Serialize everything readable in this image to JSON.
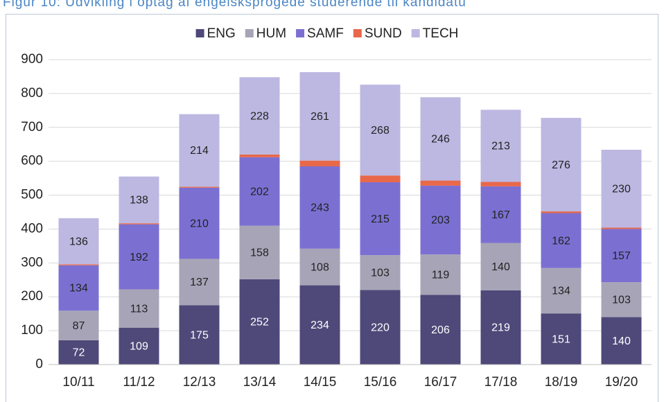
{
  "chart_data": {
    "type": "stacked_bar",
    "title": "Figur 10: Udvikling i optag af engelsksprogede studerende til kandidatu",
    "categories": [
      "10/11",
      "11/12",
      "12/13",
      "13/14",
      "14/15",
      "15/16",
      "16/17",
      "17/18",
      "18/19",
      "19/20"
    ],
    "series": [
      {
        "name": "ENG",
        "color": "#4e4979",
        "labels": true,
        "label_color": "#ffffff",
        "values": [
          72,
          109,
          175,
          252,
          234,
          220,
          206,
          219,
          151,
          140
        ]
      },
      {
        "name": "HUM",
        "color": "#a7a4b7",
        "labels": true,
        "label_color": "#222222",
        "values": [
          87,
          113,
          137,
          158,
          108,
          103,
          119,
          140,
          134,
          103
        ]
      },
      {
        "name": "SAMF",
        "color": "#7b70d2",
        "labels": true,
        "label_color": "#222222",
        "values": [
          134,
          192,
          210,
          202,
          243,
          215,
          203,
          167,
          162,
          157
        ]
      },
      {
        "name": "SUND",
        "color": "#e8684a",
        "labels": false,
        "values": [
          3,
          3,
          3,
          8,
          17,
          20,
          15,
          13,
          5,
          4
        ]
      },
      {
        "name": "TECH",
        "color": "#bcb8e2",
        "labels": true,
        "label_color": "#222222",
        "values": [
          136,
          138,
          214,
          228,
          261,
          268,
          246,
          213,
          276,
          230
        ]
      }
    ],
    "ylim": [
      0,
      900
    ],
    "yticks": [
      0,
      100,
      200,
      300,
      400,
      500,
      600,
      700,
      800,
      900
    ],
    "grid": true,
    "legend": "top"
  }
}
